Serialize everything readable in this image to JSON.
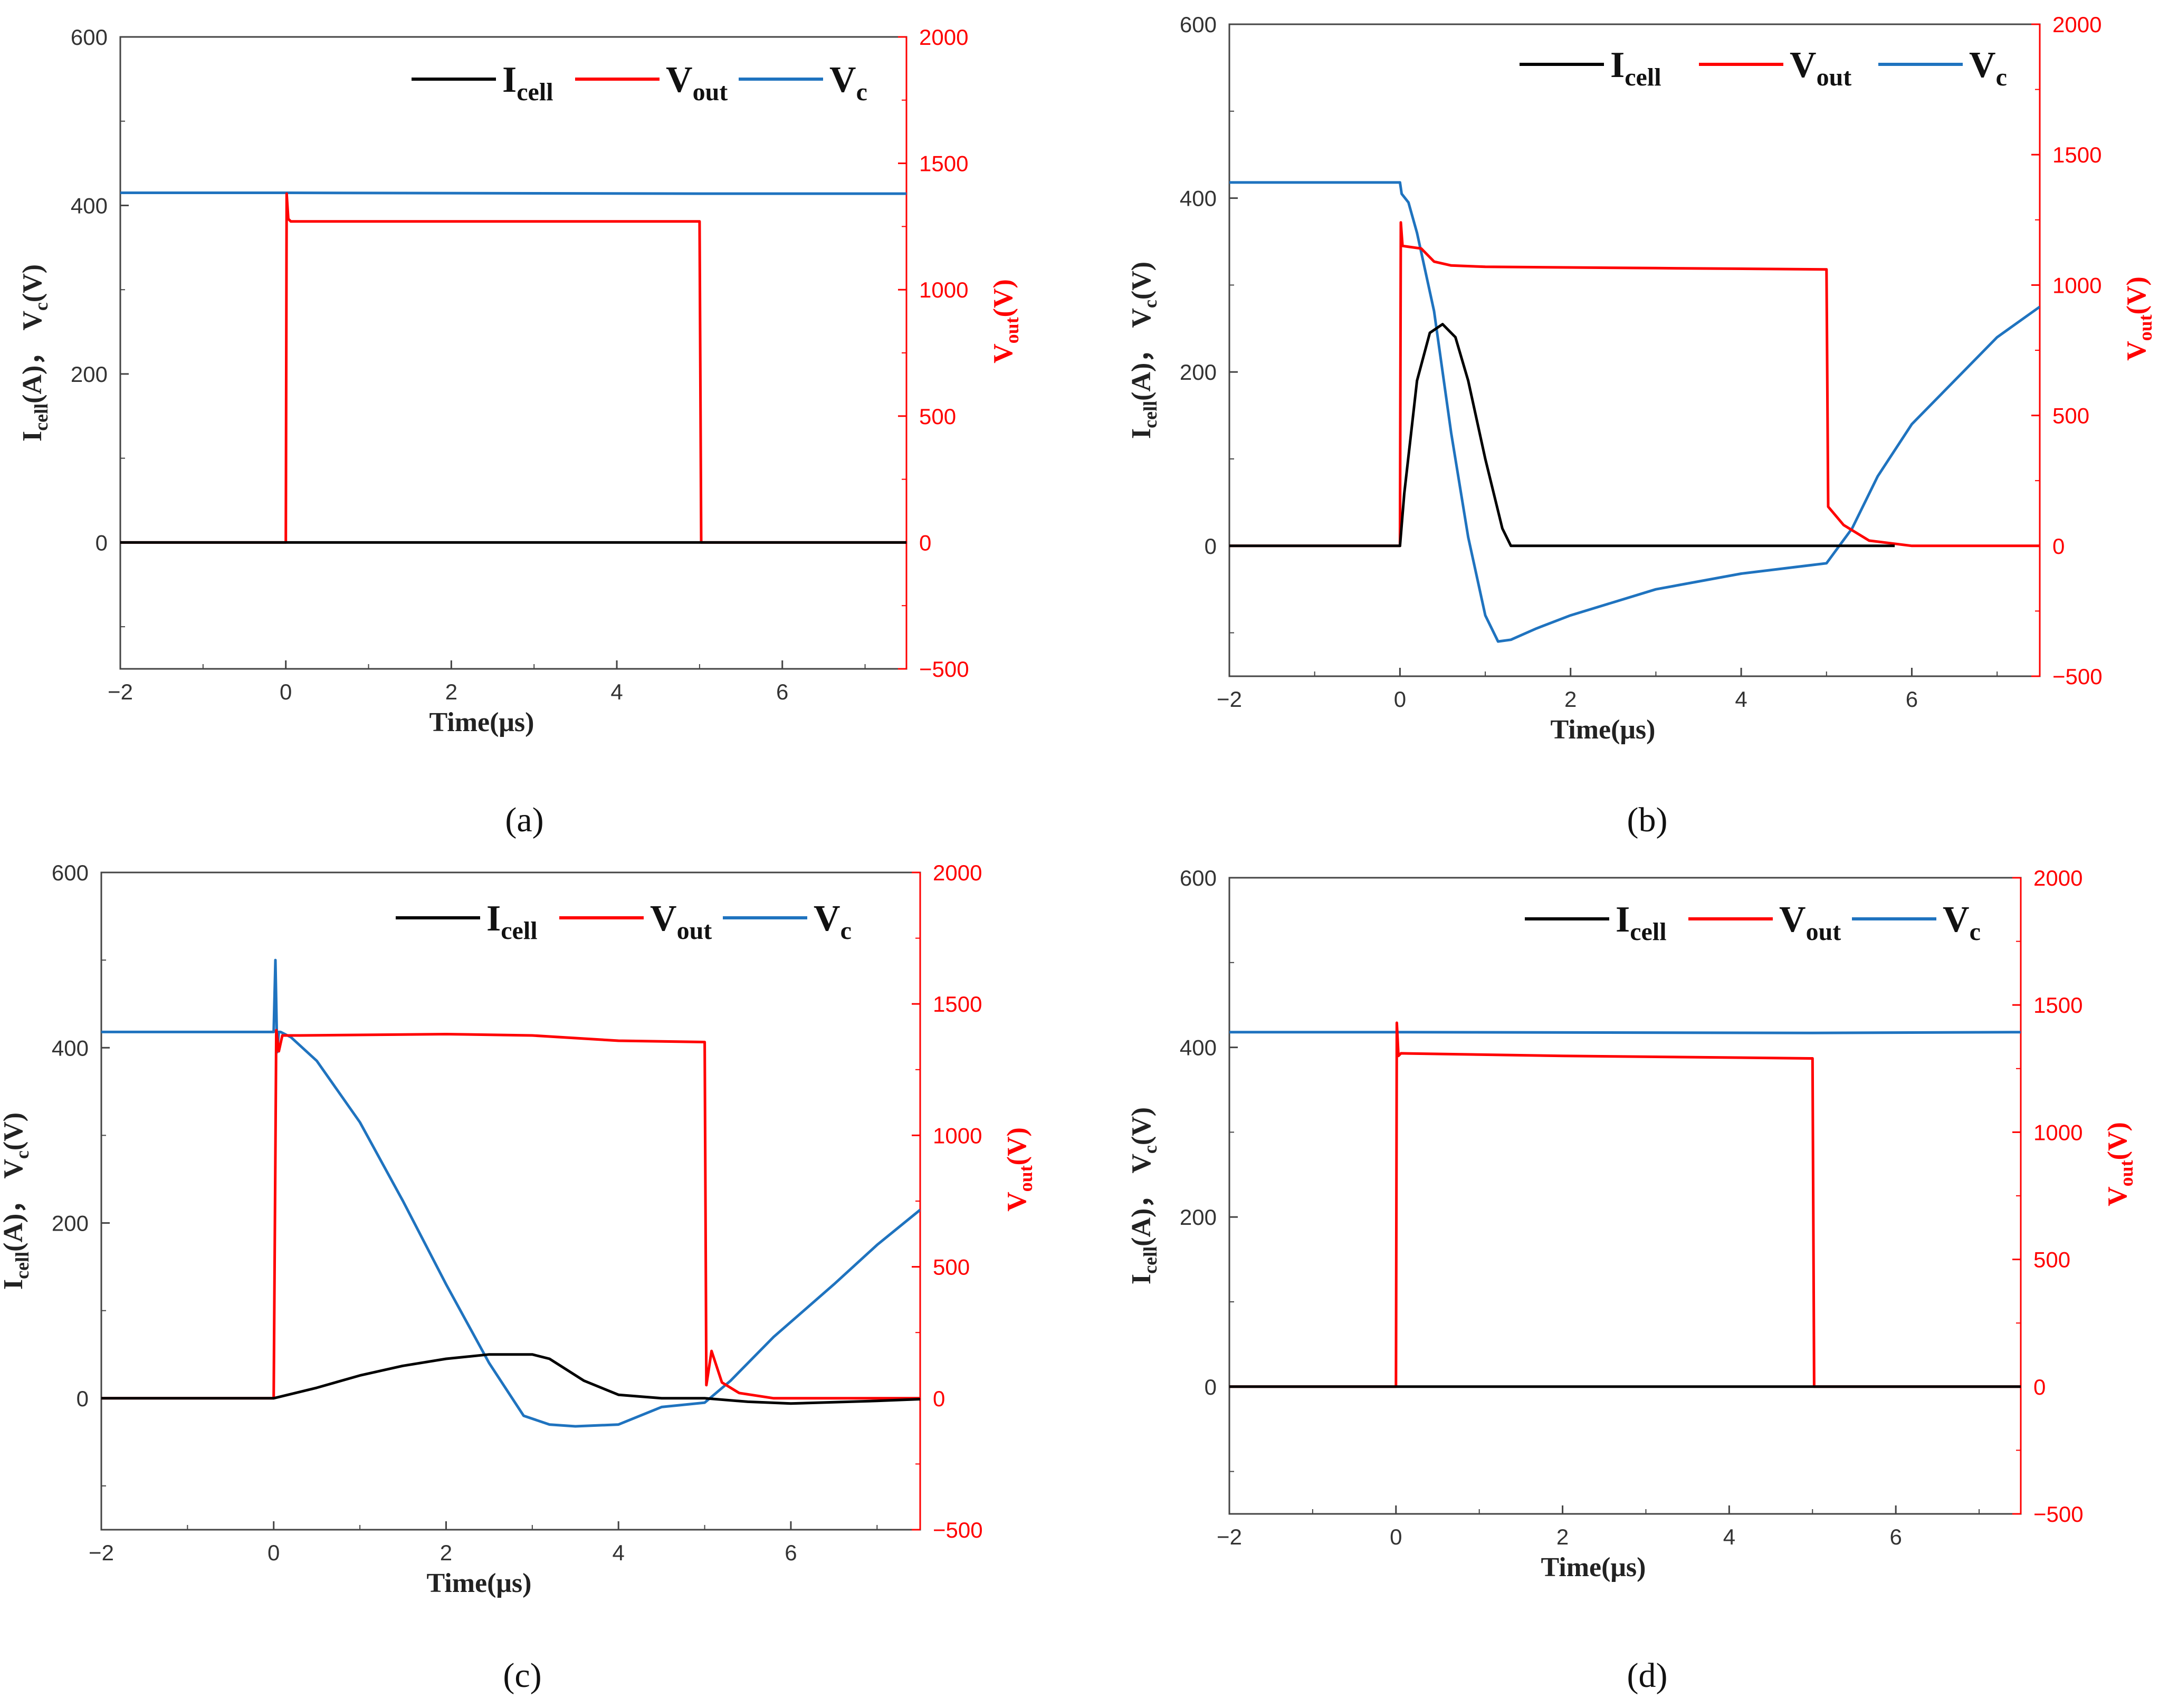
{
  "colors": {
    "icell": "#000000",
    "vout": "#ff0000",
    "vc": "#1f73bf",
    "axis_left": "#333333",
    "axis_right": "#ff0000"
  },
  "legend": {
    "icell": {
      "main": "I",
      "sub": "cell"
    },
    "vout": {
      "main": "V",
      "sub": "out"
    },
    "vc": {
      "main": "V",
      "sub": "c"
    }
  },
  "axis_labels": {
    "x": "Time(μs)",
    "y_left": {
      "i": "I",
      "i_sub": "cell",
      "i_rest": "(A)，",
      "v": "V",
      "v_sub": "c",
      "v_rest": "(V)"
    },
    "y_right": {
      "v": "V",
      "v_sub": "out",
      "v_rest": "(V)"
    }
  },
  "chart_data": [
    {
      "panel": "a",
      "panel_label": "(a)",
      "type": "line",
      "xlim": [
        -2,
        7.5
      ],
      "ylim_left": [
        -150,
        600
      ],
      "ylim_right": [
        -500,
        2000
      ],
      "xticks": [
        -2,
        0,
        2,
        4,
        6
      ],
      "yticks_left": [
        0,
        200,
        400,
        600
      ],
      "yticks_right": [
        -500,
        0,
        500,
        1000,
        1500,
        2000
      ],
      "tick_labels_x": [
        "−2",
        "0",
        "2",
        "4",
        "6"
      ],
      "tick_labels_left": [
        "0",
        "200",
        "400",
        "600"
      ],
      "tick_labels_right": [
        "−500",
        "0",
        "500",
        "1000",
        "1500",
        "2000"
      ],
      "series": [
        {
          "name": "Icell",
          "axis": "left",
          "x": [
            -2,
            0,
            5,
            7.5
          ],
          "y": [
            0,
            0,
            0,
            0
          ]
        },
        {
          "name": "Vout",
          "axis": "right",
          "x": [
            -2,
            0,
            0.01,
            0.03,
            0.06,
            4.98,
            5.0,
            5.02,
            7.5
          ],
          "y": [
            0,
            0,
            1380,
            1280,
            1270,
            1270,
            1270,
            0,
            0
          ]
        },
        {
          "name": "Vc",
          "axis": "left",
          "x": [
            -2,
            0,
            5,
            7.5
          ],
          "y": [
            415,
            415,
            414,
            414
          ]
        }
      ]
    },
    {
      "panel": "b",
      "panel_label": "(b)",
      "type": "line",
      "xlim": [
        -2,
        7.5
      ],
      "ylim_left": [
        -150,
        600
      ],
      "ylim_right": [
        -500,
        2000
      ],
      "xticks": [
        -2,
        0,
        2,
        4,
        6
      ],
      "yticks_left": [
        0,
        200,
        400,
        600
      ],
      "yticks_right": [
        -500,
        0,
        500,
        1000,
        1500,
        2000
      ],
      "tick_labels_x": [
        "−2",
        "0",
        "2",
        "4",
        "6"
      ],
      "tick_labels_left": [
        "0",
        "200",
        "400",
        "600"
      ],
      "tick_labels_right": [
        "−500",
        "0",
        "500",
        "1000",
        "1500",
        "2000"
      ],
      "series": [
        {
          "name": "Icell",
          "axis": "left",
          "x": [
            -2,
            0,
            0.05,
            0.2,
            0.35,
            0.5,
            0.65,
            0.8,
            1.0,
            1.2,
            1.3,
            2,
            5,
            5.8
          ],
          "y": [
            0,
            0,
            60,
            190,
            245,
            255,
            240,
            190,
            100,
            20,
            0,
            0,
            0,
            0
          ]
        },
        {
          "name": "Vout",
          "axis": "right",
          "x": [
            -2,
            0,
            0.01,
            0.03,
            0.25,
            0.4,
            0.6,
            1,
            3,
            5,
            5.02,
            5.2,
            5.5,
            6,
            7.5
          ],
          "y": [
            0,
            0,
            1240,
            1150,
            1140,
            1090,
            1075,
            1070,
            1065,
            1060,
            150,
            80,
            20,
            0,
            0
          ]
        },
        {
          "name": "Vc",
          "axis": "left",
          "x": [
            -2,
            0,
            0.02,
            0.1,
            0.2,
            0.4,
            0.6,
            0.8,
            1.0,
            1.15,
            1.3,
            1.6,
            2,
            3,
            4,
            5,
            5.3,
            5.6,
            6,
            7,
            7.5
          ],
          "y": [
            418,
            418,
            405,
            395,
            360,
            270,
            130,
            10,
            -80,
            -110,
            -108,
            -95,
            -80,
            -50,
            -32,
            -20,
            20,
            80,
            140,
            240,
            275
          ]
        }
      ]
    },
    {
      "panel": "c",
      "panel_label": "(c)",
      "type": "line",
      "xlim": [
        -2,
        7.5
      ],
      "ylim_left": [
        -150,
        600
      ],
      "ylim_right": [
        -500,
        2000
      ],
      "xticks": [
        -2,
        0,
        2,
        4,
        6
      ],
      "yticks_left": [
        0,
        200,
        400,
        600
      ],
      "yticks_right": [
        -500,
        0,
        500,
        1000,
        1500,
        2000
      ],
      "tick_labels_x": [
        "−2",
        "0",
        "2",
        "4",
        "6"
      ],
      "tick_labels_left": [
        "0",
        "200",
        "400",
        "600"
      ],
      "tick_labels_right": [
        "−500",
        "0",
        "500",
        "1000",
        "1500",
        "2000"
      ],
      "series": [
        {
          "name": "Icell",
          "axis": "left",
          "x": [
            -2,
            0,
            0.5,
            1,
            1.5,
            2,
            2.5,
            3,
            3.2,
            3.6,
            4,
            4.5,
            5,
            5.5,
            6,
            7,
            7.5
          ],
          "y": [
            0,
            0,
            12,
            26,
            37,
            45,
            50,
            50,
            45,
            20,
            4,
            0,
            0,
            -4,
            -6,
            -3,
            -1
          ]
        },
        {
          "name": "Vout",
          "axis": "right",
          "x": [
            -2,
            0,
            0.03,
            0.06,
            0.1,
            0.3,
            2,
            3,
            4,
            5,
            5.02,
            5.08,
            5.2,
            5.4,
            5.8,
            7.5
          ],
          "y": [
            0,
            0,
            1400,
            1320,
            1380,
            1380,
            1385,
            1380,
            1360,
            1355,
            50,
            180,
            60,
            20,
            0,
            0
          ]
        },
        {
          "name": "Vc",
          "axis": "left",
          "x": [
            -2,
            0,
            0.02,
            0.04,
            0.06,
            0.08,
            0.2,
            0.5,
            1,
            1.5,
            2,
            2.5,
            2.9,
            3.2,
            3.5,
            4,
            4.5,
            5,
            5.3,
            5.8,
            6.5,
            7,
            7.5
          ],
          "y": [
            418,
            418,
            500,
            395,
            418,
            418,
            412,
            385,
            315,
            225,
            130,
            40,
            -20,
            -30,
            -32,
            -30,
            -10,
            -5,
            20,
            70,
            130,
            175,
            215
          ]
        }
      ]
    },
    {
      "panel": "d",
      "panel_label": "(d)",
      "type": "line",
      "xlim": [
        -2,
        7.5
      ],
      "ylim_left": [
        -150,
        600
      ],
      "ylim_right": [
        -500,
        2000
      ],
      "xticks": [
        -2,
        0,
        2,
        4,
        6
      ],
      "yticks_left": [
        0,
        200,
        400,
        600
      ],
      "yticks_right": [
        -500,
        0,
        500,
        1000,
        1500,
        2000
      ],
      "tick_labels_x": [
        "−2",
        "0",
        "2",
        "4",
        "6"
      ],
      "tick_labels_left": [
        "0",
        "200",
        "400",
        "600"
      ],
      "tick_labels_right": [
        "−500",
        "0",
        "500",
        "1000",
        "1500",
        "2000"
      ],
      "series": [
        {
          "name": "Icell",
          "axis": "left",
          "x": [
            -2,
            0,
            5,
            7.5
          ],
          "y": [
            0,
            0,
            0,
            0
          ]
        },
        {
          "name": "Vout",
          "axis": "right",
          "x": [
            -2,
            0,
            0.01,
            0.03,
            0.06,
            2,
            4.98,
            5.0,
            5.02,
            7.5
          ],
          "y": [
            0,
            0,
            1430,
            1300,
            1310,
            1300,
            1290,
            1290,
            0,
            0
          ]
        },
        {
          "name": "Vc",
          "axis": "left",
          "x": [
            -2,
            0,
            5,
            7.5
          ],
          "y": [
            418,
            418,
            417,
            418
          ]
        }
      ]
    }
  ]
}
